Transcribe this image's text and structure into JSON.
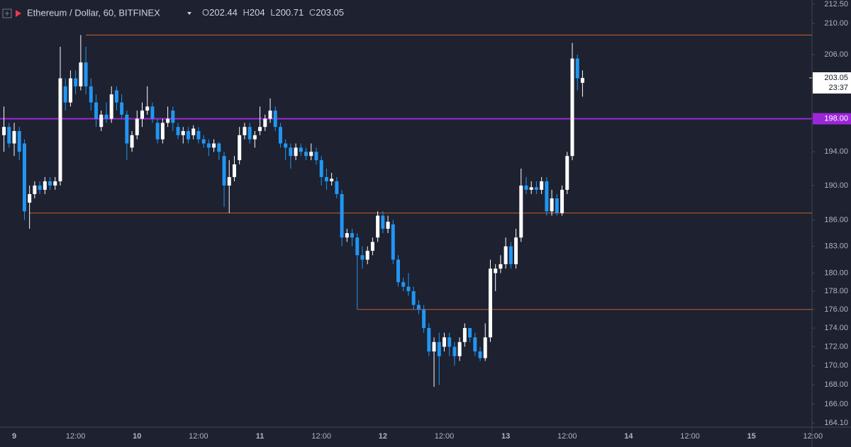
{
  "chart_data": {
    "type": "candlestick",
    "title": "Ethereum / Dollar, 60, BITFINEX",
    "ohlc_labels": [
      "O",
      "H",
      "L",
      "C"
    ],
    "countdown": "23:37",
    "log_scale": true,
    "up_color": "#ffffff",
    "down_color": "#2196f3",
    "categories": [
      null,
      null,
      "9",
      null,
      null,
      null,
      null,
      null,
      null,
      null,
      null,
      null,
      null,
      null,
      "12:00",
      null,
      null,
      null,
      null,
      null,
      null,
      null,
      null,
      null,
      null,
      null,
      "10",
      null,
      null,
      null,
      null,
      null,
      null,
      null,
      null,
      null,
      null,
      null,
      "12:00",
      null,
      null,
      null,
      null,
      null,
      null,
      null,
      null,
      null,
      null,
      null,
      "11",
      null,
      null,
      null,
      null,
      null,
      null,
      null,
      null,
      null,
      null,
      null,
      "12:00",
      null,
      null,
      null,
      null,
      null,
      null,
      null,
      null,
      null,
      null,
      null,
      "12",
      null,
      null,
      null,
      null,
      null,
      null,
      null,
      null,
      null,
      null,
      null,
      "12:00",
      null,
      null,
      null,
      null,
      null,
      null,
      null,
      null,
      null,
      null,
      null,
      "13",
      null,
      null,
      null,
      null,
      null,
      null,
      null,
      null,
      null,
      null,
      null,
      "12:00",
      null,
      null,
      null,
      null,
      null,
      null,
      null,
      null,
      null,
      null,
      null,
      "14",
      null,
      null,
      null,
      null,
      null,
      null,
      null,
      null,
      null,
      null,
      null,
      "12:00",
      null,
      null,
      null,
      null,
      null,
      null,
      null,
      null,
      null,
      null,
      null,
      "15",
      null,
      null,
      null,
      null,
      null,
      null,
      null,
      null,
      null,
      null,
      null,
      "12:00"
    ],
    "open": [
      196,
      197,
      195,
      196.5,
      195,
      188,
      189,
      190,
      189.5,
      190.5,
      190,
      190.5,
      202,
      200,
      203,
      202,
      205,
      202,
      200,
      197,
      198.5,
      198,
      201.5,
      200,
      198.5,
      194.5,
      196,
      198,
      199,
      199.5,
      197.5,
      195.5,
      197.5,
      199,
      197,
      196,
      196.5,
      196,
      196.5,
      195.5,
      195,
      194.5,
      195,
      193.5,
      190,
      191,
      193,
      196,
      197,
      195.5,
      196.5,
      197,
      198,
      199,
      197,
      195,
      194.5,
      193.5,
      194.5,
      194,
      193.5,
      194,
      193,
      191,
      190.5,
      190.5,
      189,
      184,
      184.5,
      184,
      182,
      181.5,
      182.5,
      184,
      186.5,
      185,
      185.5,
      181.5,
      179,
      178.5,
      178,
      176.5,
      176,
      174,
      171.5,
      172.5,
      172,
      173,
      172,
      171,
      172.5,
      174,
      173,
      171.5,
      170.8,
      173,
      180,
      180.5,
      181,
      183,
      181,
      184,
      190,
      189.5,
      189.8,
      189.5,
      190.5,
      187,
      188.5,
      186.8,
      189.5,
      193.5,
      205.5,
      202.44,
      null,
      null,
      null,
      null,
      null,
      null,
      null,
      null,
      null,
      null,
      null,
      null,
      null,
      null,
      null,
      null,
      null,
      null,
      null,
      null,
      null,
      null,
      null,
      null,
      null,
      null,
      null,
      null,
      null,
      null,
      null,
      null,
      null,
      null,
      null,
      null,
      null,
      null,
      null,
      null,
      null,
      null,
      null,
      null,
      null
    ],
    "high": [
      199.5,
      197.5,
      197.5,
      197,
      195.5,
      190,
      190.5,
      190.5,
      191,
      191,
      191,
      207,
      203,
      204,
      204,
      208.5,
      207,
      203,
      201,
      199,
      200,
      202,
      202,
      201,
      199,
      196.5,
      199,
      200,
      202,
      200,
      198,
      198,
      199.5,
      199.5,
      197.5,
      197,
      197,
      197.2,
      197,
      196,
      195.5,
      195.5,
      195.2,
      194,
      193,
      193.5,
      197,
      197.5,
      197.5,
      196.5,
      199.5,
      198.5,
      200.5,
      199.5,
      197.5,
      195.5,
      195,
      195,
      195,
      194.5,
      195,
      194.5,
      193.5,
      192,
      191.5,
      191,
      189.5,
      185,
      185,
      184.5,
      183,
      183,
      184,
      187,
      187,
      186.5,
      186,
      182,
      179.5,
      180,
      178.5,
      177,
      176.5,
      174.5,
      173,
      173.5,
      173.5,
      173.5,
      172.5,
      173,
      174.5,
      174,
      173.5,
      172,
      174.5,
      181.5,
      181,
      182,
      184,
      183.5,
      185,
      192,
      191,
      190.5,
      190.5,
      191,
      191,
      189.5,
      189,
      190,
      194,
      207.5,
      206,
      204,
      null,
      null,
      null,
      null,
      null,
      null,
      null,
      null,
      null,
      null,
      null,
      null,
      null,
      null,
      null,
      null,
      null,
      null,
      null,
      null,
      null,
      null,
      null,
      null,
      null,
      null,
      null,
      null,
      null,
      null,
      null,
      null,
      null,
      null,
      null,
      null,
      null,
      null,
      null,
      null,
      null,
      null,
      null,
      null,
      null
    ],
    "low": [
      194,
      194.5,
      193.5,
      193,
      186,
      185,
      188.5,
      189,
      189,
      189.5,
      189.5,
      190,
      199,
      199.5,
      201,
      201.5,
      201,
      199,
      197,
      196.5,
      197.5,
      197.5,
      199,
      198,
      193,
      194,
      195.5,
      197,
      198.5,
      197.5,
      195,
      195,
      197,
      196.5,
      195.5,
      195,
      195,
      195.5,
      195,
      194.5,
      193.5,
      194,
      193,
      187.5,
      186.8,
      190.5,
      192.5,
      195.5,
      195,
      194.5,
      196,
      196.5,
      197.5,
      196.5,
      194.5,
      193,
      192,
      193,
      193.5,
      193,
      193,
      192.5,
      190,
      189.5,
      190,
      188.5,
      183,
      183.5,
      183,
      176,
      180.5,
      181,
      182,
      183.5,
      184.5,
      184.5,
      181,
      178.5,
      178,
      177.5,
      176,
      175.5,
      173.5,
      171,
      167.8,
      168,
      171.5,
      171,
      170,
      170.5,
      172,
      172.5,
      171,
      170.5,
      170.5,
      172.5,
      178,
      180,
      180.5,
      180.5,
      180.5,
      183.5,
      189,
      189,
      189,
      189,
      186.5,
      186.5,
      186.5,
      186.5,
      189,
      193,
      201.5,
      200.71,
      null,
      null,
      null,
      null,
      null,
      null,
      null,
      null,
      null,
      null,
      null,
      null,
      null,
      null,
      null,
      null,
      null,
      null,
      null,
      null,
      null,
      null,
      null,
      null,
      null,
      null,
      null,
      null,
      null,
      null,
      null,
      null,
      null,
      null,
      null,
      null,
      null,
      null,
      null,
      null,
      null,
      null,
      null,
      null,
      null
    ],
    "close": [
      197,
      195,
      196.5,
      194,
      187,
      189,
      190,
      189.5,
      190.5,
      190,
      190.5,
      203,
      200,
      203,
      202,
      205,
      202,
      200,
      198,
      198.5,
      198,
      201,
      200,
      198.5,
      195,
      196,
      198,
      199,
      199.5,
      198,
      195.5,
      197.5,
      198,
      197.5,
      196,
      196.5,
      195.5,
      196.8,
      195.5,
      195,
      194.5,
      195,
      194,
      190,
      191,
      192.5,
      196,
      197,
      195.5,
      196,
      197,
      198,
      199,
      197,
      195,
      194.5,
      193.5,
      194.5,
      194,
      193.5,
      194,
      193,
      191,
      190.5,
      190.8,
      189,
      184,
      184.5,
      184,
      182,
      181.5,
      182.5,
      183.5,
      186.5,
      185,
      185.8,
      181.5,
      179,
      178.5,
      178,
      176.5,
      176,
      174,
      171.5,
      172.5,
      171,
      173,
      172,
      171,
      172.5,
      174,
      173,
      171.5,
      170.8,
      173,
      180.5,
      180.5,
      181,
      183,
      181,
      184,
      190,
      189.5,
      189.8,
      189.5,
      190.5,
      187,
      188.5,
      186.8,
      189.5,
      193.5,
      205.5,
      203,
      203.05,
      null,
      null,
      null,
      null,
      null,
      null,
      null,
      null,
      null,
      null,
      null,
      null,
      null,
      null,
      null,
      null,
      null,
      null,
      null,
      null,
      null,
      null,
      null,
      null,
      null,
      null,
      null,
      null,
      null,
      null,
      null,
      null,
      null,
      null,
      null,
      null,
      null,
      null,
      null,
      null,
      null,
      null,
      null,
      null,
      null
    ],
    "ylim": [
      163.67,
      213.06
    ],
    "yticks": [
      {
        "value": 164.1,
        "label": "164.10"
      },
      {
        "value": 166,
        "label": "166.00"
      },
      {
        "value": 168,
        "label": "168.00"
      },
      {
        "value": 170,
        "label": "170.00"
      },
      {
        "value": 172,
        "label": "172.00"
      },
      {
        "value": 174,
        "label": "174.00"
      },
      {
        "value": 176,
        "label": "176.00"
      },
      {
        "value": 178,
        "label": "178.00"
      },
      {
        "value": 180,
        "label": "180.00"
      },
      {
        "value": 183,
        "label": "183.00"
      },
      {
        "value": 186,
        "label": "186.00"
      },
      {
        "value": 190,
        "label": "190.00"
      },
      {
        "value": 194,
        "label": "194.00"
      },
      {
        "value": 206,
        "label": "206.00"
      },
      {
        "value": 210,
        "label": "210.00"
      },
      {
        "value": 212.5,
        "label": "212.50"
      }
    ],
    "hlines": [
      {
        "value": 208.5,
        "color": "#c8612a"
      },
      {
        "value": 186.8,
        "color": "#c8612a"
      },
      {
        "value": 176,
        "color": "#c8612a"
      },
      {
        "value": 198,
        "color": "#9c27d9",
        "value_label": "198.00"
      }
    ]
  }
}
